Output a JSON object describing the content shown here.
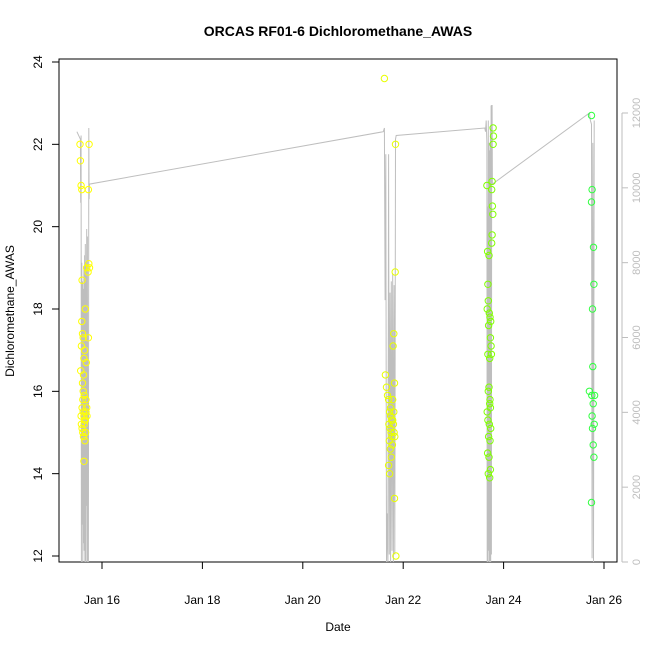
{
  "chart_data": {
    "type": "scatter",
    "title": "ORCAS RF01-6 Dichloromethane_AWAS",
    "xlabel": "Date",
    "ylabel": "Dichloromethane_AWAS",
    "xlim": [
      "2016-01-15T00:00",
      "2016-01-26T08:00"
    ],
    "ylim": [
      12,
      24
    ],
    "y2lim": [
      0,
      12300
    ],
    "x_ticks": [
      {
        "label": "Jan 16",
        "value": "2016-01-16T00:00"
      },
      {
        "label": "Jan 18",
        "value": "2016-01-18T00:00"
      },
      {
        "label": "Jan 20",
        "value": "2016-01-20T00:00"
      },
      {
        "label": "Jan 22",
        "value": "2016-01-22T00:00"
      },
      {
        "label": "Jan 24",
        "value": "2016-01-24T00:00"
      },
      {
        "label": "Jan 26",
        "value": "2016-01-26T00:00"
      }
    ],
    "y_ticks": [
      12,
      14,
      16,
      18,
      20,
      22,
      24
    ],
    "y2_ticks": [
      0,
      2000,
      4000,
      6000,
      8000,
      10000,
      12000
    ],
    "grid": false,
    "points_note_colors": {
      "RF01": "#ffff00",
      "RF02": "#f0ff00",
      "RF03": "#c8ff00",
      "RF04": "#80ff00",
      "RF05": "#40ff30",
      "RF06": "#20ff50"
    },
    "series": [
      {
        "flight": "RF01",
        "color": "#ffff00",
        "points": [
          [
            "2016-01-15T13:30",
            22.0
          ],
          [
            "2016-01-15T13:40",
            21.6
          ],
          [
            "2016-01-15T14:00",
            21.0
          ],
          [
            "2016-01-15T14:20",
            20.9
          ],
          [
            "2016-01-15T14:30",
            18.7
          ],
          [
            "2016-01-15T14:20",
            17.7
          ],
          [
            "2016-01-15T14:10",
            17.1
          ],
          [
            "2016-01-15T13:50",
            16.5
          ],
          [
            "2016-01-15T14:40",
            17.4
          ],
          [
            "2016-01-15T15:00",
            17.3
          ],
          [
            "2016-01-15T15:20",
            16.8
          ],
          [
            "2016-01-15T15:10",
            16.4
          ],
          [
            "2016-01-15T14:40",
            16.2
          ],
          [
            "2016-01-15T15:00",
            16.0
          ],
          [
            "2016-01-15T14:50",
            15.8
          ],
          [
            "2016-01-15T15:30",
            15.9
          ],
          [
            "2016-01-15T14:30",
            15.6
          ],
          [
            "2016-01-15T15:00",
            15.5
          ],
          [
            "2016-01-15T15:20",
            15.4
          ],
          [
            "2016-01-15T15:40",
            15.3
          ],
          [
            "2016-01-15T14:10",
            15.2
          ],
          [
            "2016-01-15T14:30",
            15.1
          ],
          [
            "2016-01-15T14:50",
            15.0
          ],
          [
            "2016-01-15T15:10",
            14.9
          ],
          [
            "2016-01-15T15:30",
            15.2
          ],
          [
            "2016-01-15T16:00",
            15.3
          ],
          [
            "2016-01-15T16:20",
            15.5
          ],
          [
            "2016-01-15T16:40",
            15.6
          ],
          [
            "2016-01-15T15:20",
            14.3
          ],
          [
            "2016-01-15T16:10",
            15.0
          ],
          [
            "2016-01-15T16:30",
            16.7
          ],
          [
            "2016-01-15T17:30",
            17.3
          ],
          [
            "2016-01-15T17:40",
            19.1
          ],
          [
            "2016-01-15T18:00",
            19.0
          ],
          [
            "2016-01-15T17:20",
            18.9
          ],
          [
            "2016-01-15T17:50",
            22.0
          ],
          [
            "2016-01-15T17:30",
            20.9
          ],
          [
            "2016-01-15T16:40",
            19.0
          ],
          [
            "2016-01-15T16:00",
            18.0
          ],
          [
            "2016-01-15T15:40",
            17.0
          ],
          [
            "2016-01-15T16:20",
            15.8
          ],
          [
            "2016-01-15T16:50",
            15.4
          ],
          [
            "2016-01-15T14:00",
            15.4
          ],
          [
            "2016-01-15T15:50",
            14.8
          ]
        ]
      },
      {
        "flight": "RF02",
        "color": "#e8ff00",
        "points": [
          [
            "2016-01-21T15:00",
            23.6
          ],
          [
            "2016-01-21T15:30",
            16.4
          ],
          [
            "2016-01-21T16:00",
            16.1
          ],
          [
            "2016-01-21T16:30",
            15.9
          ],
          [
            "2016-01-21T17:00",
            15.8
          ],
          [
            "2016-01-21T17:30",
            15.5
          ],
          [
            "2016-01-21T18:00",
            15.4
          ],
          [
            "2016-01-21T18:30",
            15.3
          ],
          [
            "2016-01-21T17:10",
            15.2
          ],
          [
            "2016-01-21T17:40",
            15.1
          ],
          [
            "2016-01-21T18:10",
            15.0
          ],
          [
            "2016-01-21T18:40",
            14.9
          ],
          [
            "2016-01-21T17:20",
            14.8
          ],
          [
            "2016-01-21T17:50",
            14.6
          ],
          [
            "2016-01-21T18:20",
            14.4
          ],
          [
            "2016-01-21T17:00",
            14.2
          ],
          [
            "2016-01-21T17:30",
            14.0
          ],
          [
            "2016-01-21T19:00",
            15.3
          ],
          [
            "2016-01-21T19:20",
            15.2
          ],
          [
            "2016-01-21T19:40",
            15.0
          ],
          [
            "2016-01-21T20:00",
            14.9
          ],
          [
            "2016-01-21T19:10",
            17.1
          ],
          [
            "2016-01-21T19:30",
            17.4
          ],
          [
            "2016-01-21T19:50",
            16.2
          ],
          [
            "2016-01-21T20:10",
            18.9
          ],
          [
            "2016-01-21T20:20",
            22.0
          ],
          [
            "2016-01-21T19:00",
            15.8
          ],
          [
            "2016-01-21T19:30",
            15.5
          ],
          [
            "2016-01-21T19:50",
            13.4
          ],
          [
            "2016-01-21T20:30",
            12.0
          ],
          [
            "2016-01-21T18:00",
            15.6
          ],
          [
            "2016-01-21T18:50",
            14.7
          ]
        ]
      },
      {
        "flight": "RF03",
        "color": "#80ff00",
        "points": [
          [
            "2016-01-23T16:00",
            21.0
          ],
          [
            "2016-01-23T16:30",
            18.6
          ],
          [
            "2016-01-23T16:40",
            18.2
          ],
          [
            "2016-01-23T16:10",
            18.0
          ],
          [
            "2016-01-23T16:50",
            17.6
          ],
          [
            "2016-01-23T17:10",
            17.9
          ],
          [
            "2016-01-23T17:30",
            17.8
          ],
          [
            "2016-01-23T17:50",
            17.7
          ],
          [
            "2016-01-23T16:20",
            19.4
          ],
          [
            "2016-01-23T17:00",
            19.3
          ],
          [
            "2016-01-23T17:40",
            17.3
          ],
          [
            "2016-01-23T18:00",
            17.1
          ],
          [
            "2016-01-23T16:30",
            16.9
          ],
          [
            "2016-01-23T17:20",
            16.8
          ],
          [
            "2016-01-23T18:10",
            16.9
          ],
          [
            "2016-01-23T17:00",
            16.1
          ],
          [
            "2016-01-23T16:40",
            16.0
          ],
          [
            "2016-01-23T17:20",
            15.7
          ],
          [
            "2016-01-23T17:40",
            15.6
          ],
          [
            "2016-01-23T16:10",
            15.5
          ],
          [
            "2016-01-23T16:30",
            15.3
          ],
          [
            "2016-01-23T17:10",
            15.2
          ],
          [
            "2016-01-23T17:50",
            15.1
          ],
          [
            "2016-01-23T16:50",
            14.9
          ],
          [
            "2016-01-23T17:30",
            14.8
          ],
          [
            "2016-01-23T16:20",
            14.5
          ],
          [
            "2016-01-23T17:00",
            14.4
          ],
          [
            "2016-01-23T17:40",
            14.1
          ],
          [
            "2016-01-23T16:40",
            14.0
          ],
          [
            "2016-01-23T17:20",
            13.9
          ],
          [
            "2016-01-23T18:20",
            19.6
          ],
          [
            "2016-01-23T18:30",
            19.8
          ],
          [
            "2016-01-23T18:40",
            20.5
          ],
          [
            "2016-01-23T18:50",
            20.3
          ],
          [
            "2016-01-23T18:30",
            21.1
          ],
          [
            "2016-01-23T19:00",
            22.0
          ],
          [
            "2016-01-23T19:10",
            22.2
          ],
          [
            "2016-01-23T19:00",
            22.4
          ],
          [
            "2016-01-23T18:20",
            20.9
          ],
          [
            "2016-01-23T17:30",
            15.8
          ]
        ]
      },
      {
        "flight": "RF04",
        "color": "#30ff40",
        "points": [
          [
            "2016-01-25T18:00",
            22.7
          ],
          [
            "2016-01-25T18:20",
            20.9
          ],
          [
            "2016-01-25T18:00",
            20.6
          ],
          [
            "2016-01-25T19:00",
            19.5
          ],
          [
            "2016-01-25T19:10",
            18.6
          ],
          [
            "2016-01-25T18:30",
            18.0
          ],
          [
            "2016-01-25T18:40",
            16.6
          ],
          [
            "2016-01-25T17:00",
            16.0
          ],
          [
            "2016-01-25T18:10",
            15.9
          ],
          [
            "2016-01-25T19:30",
            15.9
          ],
          [
            "2016-01-25T18:50",
            15.7
          ],
          [
            "2016-01-25T18:20",
            15.4
          ],
          [
            "2016-01-25T19:20",
            15.2
          ],
          [
            "2016-01-25T18:30",
            15.1
          ],
          [
            "2016-01-25T18:50",
            14.7
          ],
          [
            "2016-01-25T19:10",
            14.4
          ],
          [
            "2016-01-25T18:00",
            13.3
          ]
        ]
      }
    ],
    "altitude_line": {
      "color": "#bebebe",
      "points": [
        [
          "2016-01-15T12:00",
          11500
        ],
        [
          "2016-01-15T13:40",
          11300
        ],
        [
          "2016-01-15T13:50",
          9600
        ],
        [
          "2016-01-15T14:00",
          11400
        ],
        [
          "2016-01-15T14:10",
          0
        ],
        [
          "2016-01-15T14:20",
          8000
        ],
        [
          "2016-01-15T14:30",
          1000
        ],
        [
          "2016-01-15T14:40",
          7500
        ],
        [
          "2016-01-15T14:50",
          0
        ],
        [
          "2016-01-15T15:00",
          7300
        ],
        [
          "2016-01-15T15:10",
          500
        ],
        [
          "2016-01-15T15:20",
          7900
        ],
        [
          "2016-01-15T15:30",
          300
        ],
        [
          "2016-01-15T15:40",
          8200
        ],
        [
          "2016-01-15T15:50",
          0
        ],
        [
          "2016-01-15T16:00",
          8500
        ],
        [
          "2016-01-15T16:10",
          0
        ],
        [
          "2016-01-15T16:20",
          8000
        ],
        [
          "2016-01-15T16:30",
          1500
        ],
        [
          "2016-01-15T16:40",
          8900
        ],
        [
          "2016-01-15T16:50",
          0
        ],
        [
          "2016-01-15T17:00",
          8700
        ],
        [
          "2016-01-15T17:10",
          0
        ],
        [
          "2016-01-15T17:20",
          4000
        ],
        [
          "2016-01-15T17:30",
          0
        ],
        [
          "2016-01-15T17:40",
          11600
        ],
        [
          "2016-01-15T17:50",
          9700
        ],
        [
          "2016-01-15T18:00",
          10100
        ],
        [
          "2016-01-21T14:30",
          11500
        ],
        [
          "2016-01-21T15:00",
          11600
        ],
        [
          "2016-01-21T15:20",
          7000
        ],
        [
          "2016-01-21T15:40",
          10900
        ],
        [
          "2016-01-21T16:00",
          0
        ],
        [
          "2016-01-21T16:20",
          1300
        ],
        [
          "2016-01-21T16:40",
          0
        ],
        [
          "2016-01-21T17:00",
          10900
        ],
        [
          "2016-01-21T17:20",
          200
        ],
        [
          "2016-01-21T17:40",
          7200
        ],
        [
          "2016-01-21T18:00",
          0
        ],
        [
          "2016-01-21T18:20",
          7500
        ],
        [
          "2016-01-21T18:40",
          300
        ],
        [
          "2016-01-21T19:00",
          7700
        ],
        [
          "2016-01-21T19:20",
          0
        ],
        [
          "2016-01-21T19:40",
          7400
        ],
        [
          "2016-01-21T20:00",
          200
        ],
        [
          "2016-01-21T20:20",
          11300
        ],
        [
          "2016-01-21T20:40",
          11400
        ],
        [
          "2016-01-23T15:00",
          11600
        ],
        [
          "2016-01-23T15:20",
          11500
        ],
        [
          "2016-01-23T15:40",
          11800
        ],
        [
          "2016-01-23T16:00",
          11200
        ],
        [
          "2016-01-23T16:10",
          0
        ],
        [
          "2016-01-23T16:20",
          9500
        ],
        [
          "2016-01-23T16:30",
          0
        ],
        [
          "2016-01-23T16:40",
          11800
        ],
        [
          "2016-01-23T16:50",
          300
        ],
        [
          "2016-01-23T17:00",
          11200
        ],
        [
          "2016-01-23T17:10",
          0
        ],
        [
          "2016-01-23T17:20",
          11000
        ],
        [
          "2016-01-23T17:30",
          0
        ],
        [
          "2016-01-23T17:40",
          11600
        ],
        [
          "2016-01-23T17:50",
          0
        ],
        [
          "2016-01-23T18:00",
          12200
        ],
        [
          "2016-01-23T18:10",
          200
        ],
        [
          "2016-01-23T18:20",
          12200
        ],
        [
          "2016-01-23T18:30",
          12200
        ],
        [
          "2016-01-23T18:40",
          10100
        ],
        [
          "2016-01-25T17:00",
          12000
        ],
        [
          "2016-01-25T17:30",
          11800
        ],
        [
          "2016-01-25T18:00",
          11700
        ],
        [
          "2016-01-25T18:20",
          100
        ],
        [
          "2016-01-25T18:40",
          11200
        ],
        [
          "2016-01-25T19:00",
          0
        ],
        [
          "2016-01-25T19:20",
          11800
        ]
      ]
    }
  }
}
